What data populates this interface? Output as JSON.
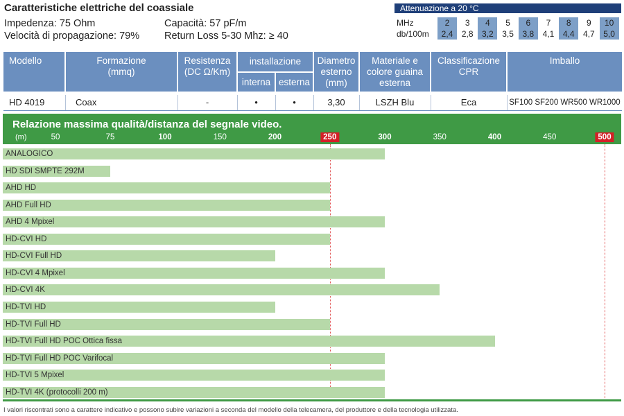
{
  "header": {
    "title": "Caratteristiche elettriche del coassiale",
    "impedance": "Impedenza: 75 Ohm",
    "velocity": "Velocità di propagazione: 79%",
    "capacity": "Capacità: 57 pF/m",
    "return_loss": "Return Loss 5-30 Mhz: ≥ 40"
  },
  "attenuation": {
    "title": "Attenuazione a 20 °C",
    "row1_label": "MHz",
    "row2_label": "db/100m",
    "mhz": [
      "2",
      "3",
      "4",
      "5",
      "6",
      "7",
      "8",
      "9",
      "10"
    ],
    "db": [
      "2,4",
      "2,8",
      "3,2",
      "3,5",
      "3,8",
      "4,1",
      "4,4",
      "4,7",
      "5,0"
    ],
    "highlight_color": "#7d9fc7"
  },
  "table": {
    "headers": {
      "modello": "Modello",
      "formazione": "Formazione\n(mmq)",
      "resistenza": "Resistenza\n(DC Ω/Km)",
      "installazione": "installazione",
      "interna": "interna",
      "esterna": "esterna",
      "diametro": "Diametro\nesterno\n(mm)",
      "materiale": "Materiale e\ncolore guaina\nesterna",
      "classificazione": "Classificazione\nCPR",
      "imballo": "Imballo"
    },
    "row": {
      "modello": "HD 4019",
      "formazione": "Coax",
      "resistenza": "-",
      "interna": "•",
      "esterna": "•",
      "diametro": "3,30",
      "materiale": "LSZH Blu",
      "classificazione": "Eca",
      "imballo": "SF100 SF200 WR500 WR1000"
    }
  },
  "chart_data": {
    "type": "bar",
    "title": "Relazione massima qualità/distanza del segnale video.",
    "xlabel": "(m)",
    "xticks": [
      50,
      75,
      100,
      150,
      200,
      250,
      300,
      350,
      400,
      450,
      500
    ],
    "xtick_labels": [
      "50",
      "75",
      "100",
      "150",
      "200",
      "250",
      "300",
      "350",
      "400",
      "450",
      "500"
    ],
    "highlighted_ticks": [
      250,
      500
    ],
    "bold_ticks": [
      100,
      200,
      300,
      400
    ],
    "reference_lines": [
      250,
      500
    ],
    "categories": [
      "ANALOGICO",
      "HD SDI SMPTE 292M",
      "AHD HD",
      "AHD Full HD",
      "AHD 4 Mpixel",
      "HD-CVI HD",
      "HD-CVI Full HD",
      "HD-CVI 4 Mpixel",
      "HD-CVI 4K",
      "HD-TVI HD",
      "HD-TVI Full HD",
      "HD-TVI Full HD POC Ottica fissa",
      "HD-TVI Full HD POC Varifocal",
      "HD-TVI 5 Mpixel",
      "HD-TVI 4K (protocolli 200 m)"
    ],
    "values": [
      300,
      75,
      250,
      250,
      300,
      250,
      200,
      300,
      350,
      200,
      250,
      400,
      300,
      300,
      300
    ],
    "colors": {
      "bar": "#b7d9a9",
      "header": "#3f9a45",
      "highlight": "#d42027"
    }
  },
  "footnote": "I valori riscontrati sono a carattere indicativo e possono subire variazioni a seconda del modello della telecamera, del produttore e della tecnologia utilizzata."
}
